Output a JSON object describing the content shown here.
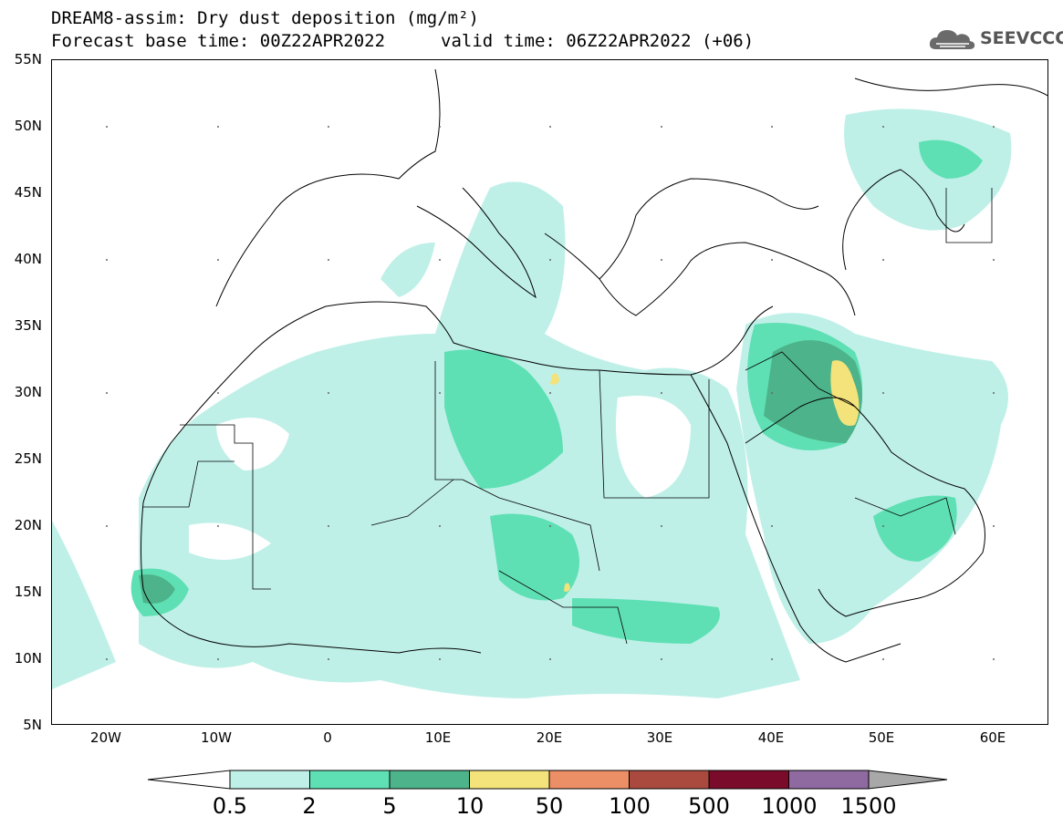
{
  "title": {
    "line1": "DREAM8-assim: Dry dust deposition (mg/m²)",
    "line2": "Forecast base time: 00Z22APR2022",
    "valid": "valid time: 06Z22APR2022 (+06)"
  },
  "logo": {
    "text": "SEEVCCC",
    "icon": "cloud-icon"
  },
  "map": {
    "projection": "lat-lon",
    "lon_range": [
      -25,
      65
    ],
    "lat_range": [
      5,
      55
    ],
    "lat_ticks": [
      "55N",
      "50N",
      "45N",
      "40N",
      "35N",
      "30N",
      "25N",
      "20N",
      "15N",
      "10N",
      "5N"
    ],
    "lon_ticks": [
      "20W",
      "10W",
      "0",
      "10E",
      "20E",
      "30E",
      "40E",
      "50E",
      "60E"
    ],
    "grid_dots": true
  },
  "colorbar": {
    "labels": [
      "0.5",
      "2",
      "5",
      "10",
      "50",
      "100",
      "500",
      "1000",
      "1500"
    ],
    "colors": [
      "#bff0e8",
      "#5fe0b4",
      "#4db38a",
      "#f3e37a",
      "#ec8e66",
      "#aa4a3e",
      "#7a0b2a",
      "#8e6aa0"
    ],
    "under_color": "#ffffff",
    "over_color": "#a8a8a8"
  }
}
